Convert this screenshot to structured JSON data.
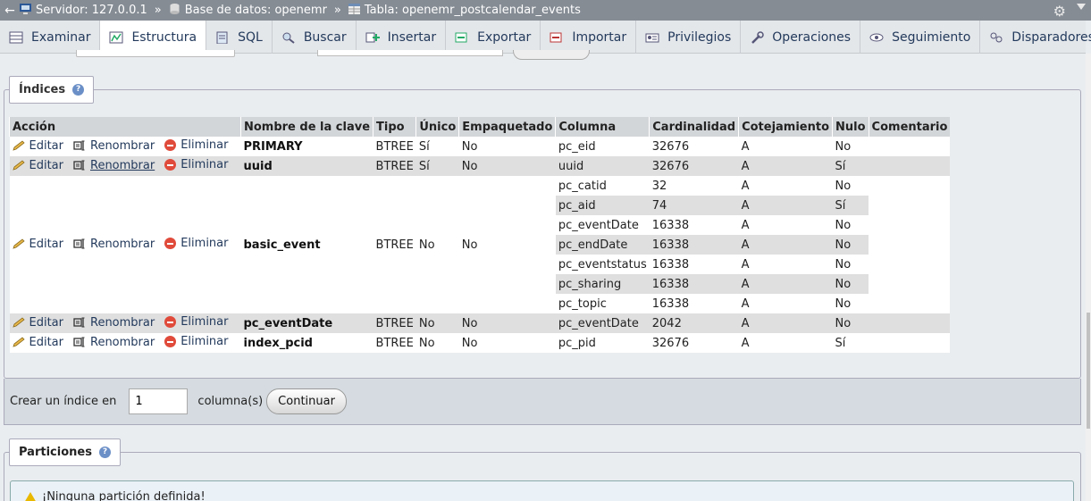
{
  "breadcrumb": {
    "back": "←",
    "server": "Servidor: 127.0.0.1",
    "database": "Base de datos: openemr",
    "table": "Tabla: openemr_postcalendar_events",
    "separator": "»"
  },
  "tabs": [
    {
      "label": "Examinar",
      "icon": "browse-icon"
    },
    {
      "label": "Estructura",
      "icon": "structure-icon",
      "active": true
    },
    {
      "label": "SQL",
      "icon": "sql-icon"
    },
    {
      "label": "Buscar",
      "icon": "search-icon"
    },
    {
      "label": "Insertar",
      "icon": "insert-icon"
    },
    {
      "label": "Exportar",
      "icon": "export-icon"
    },
    {
      "label": "Importar",
      "icon": "import-icon"
    },
    {
      "label": "Privilegios",
      "icon": "privileges-icon"
    },
    {
      "label": "Operaciones",
      "icon": "operations-icon"
    },
    {
      "label": "Seguimiento",
      "icon": "tracking-icon"
    },
    {
      "label": "Disparadores",
      "icon": "triggers-icon"
    }
  ],
  "indexes": {
    "legend": "Índices",
    "headers": [
      "Acción",
      "Nombre de la clave",
      "Tipo",
      "Único",
      "Empaquetado",
      "Columna",
      "Cardinalidad",
      "Cotejamiento",
      "Nulo",
      "Comentario"
    ],
    "actions": {
      "edit": "Editar",
      "rename": "Renombrar",
      "drop": "Eliminar"
    },
    "rows": [
      {
        "key": "PRIMARY",
        "type": "BTREE",
        "unique": "Sí",
        "packed": "No",
        "columns": [
          [
            "pc_eid",
            "32676",
            "A",
            "No"
          ]
        ]
      },
      {
        "key": "uuid",
        "type": "BTREE",
        "unique": "Sí",
        "packed": "No",
        "columns": [
          [
            "uuid",
            "32676",
            "A",
            "Sí"
          ]
        ]
      },
      {
        "key": "basic_event",
        "type": "BTREE",
        "unique": "No",
        "packed": "No",
        "columns": [
          [
            "pc_catid",
            "32",
            "A",
            "No"
          ],
          [
            "pc_aid",
            "74",
            "A",
            "Sí"
          ],
          [
            "pc_eventDate",
            "16338",
            "A",
            "No"
          ],
          [
            "pc_endDate",
            "16338",
            "A",
            "No"
          ],
          [
            "pc_eventstatus",
            "16338",
            "A",
            "No"
          ],
          [
            "pc_sharing",
            "16338",
            "A",
            "No"
          ],
          [
            "pc_topic",
            "16338",
            "A",
            "No"
          ]
        ]
      },
      {
        "key": "pc_eventDate",
        "type": "BTREE",
        "unique": "No",
        "packed": "No",
        "columns": [
          [
            "pc_eventDate",
            "2042",
            "A",
            "No"
          ]
        ]
      },
      {
        "key": "index_pcid",
        "type": "BTREE",
        "unique": "No",
        "packed": "No",
        "columns": [
          [
            "pc_pid",
            "32676",
            "A",
            "Sí"
          ]
        ]
      }
    ]
  },
  "create_index": {
    "label_before": "Crear un índice en",
    "value": "1",
    "label_after": "columna(s)",
    "button": "Continuar"
  },
  "partitions": {
    "legend": "Particiones",
    "message": "¡Ninguna partición definida!"
  },
  "colors": {
    "header_bar": "#858c94",
    "link": "#233a5c",
    "delete": "#e04a3a"
  }
}
